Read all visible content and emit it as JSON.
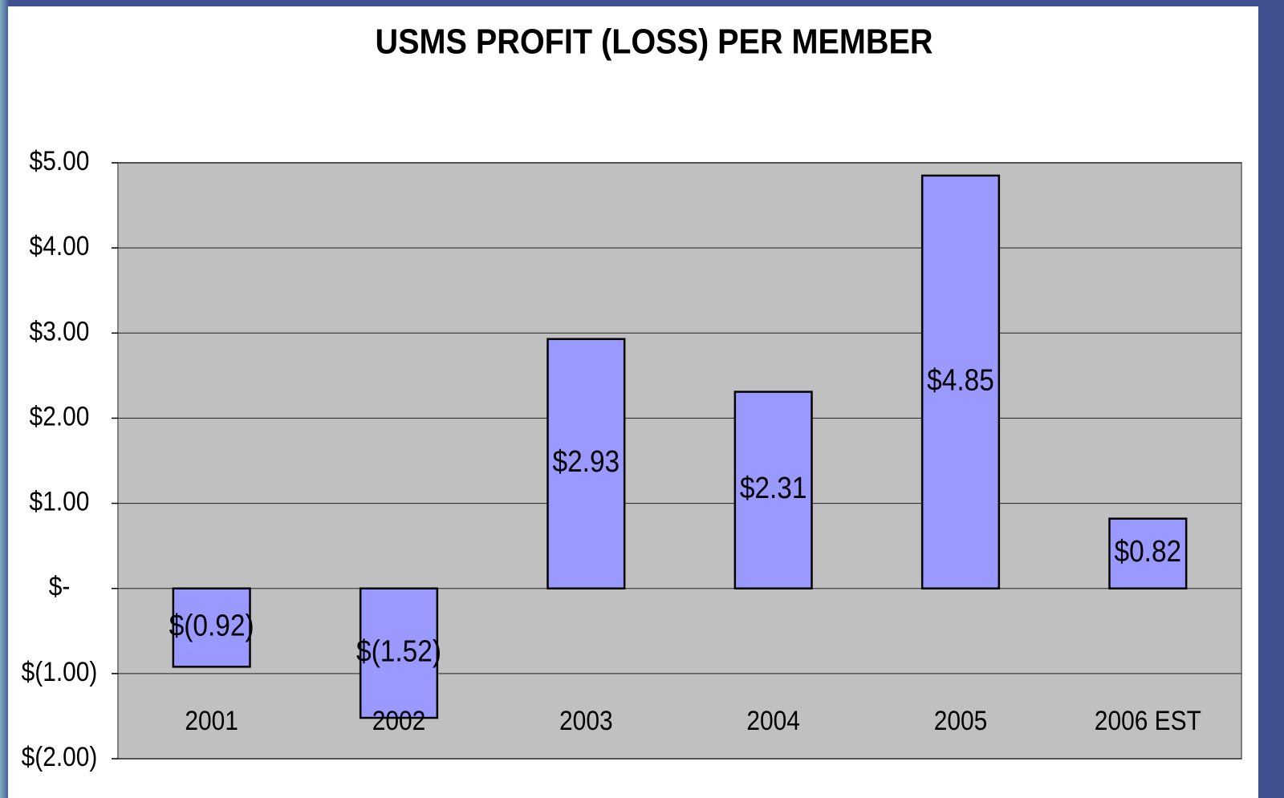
{
  "chart_data": {
    "type": "bar",
    "title": "USMS PROFIT (LOSS) PER MEMBER",
    "categories": [
      "2001",
      "2002",
      "2003",
      "2004",
      "2005",
      "2006 EST"
    ],
    "values": [
      -0.92,
      -1.52,
      2.93,
      2.31,
      4.85,
      0.82
    ],
    "value_labels": [
      "$(0.92)",
      "$(1.52)",
      "$2.93",
      "$2.31",
      "$4.85",
      "$0.82"
    ],
    "color": "#9999ff",
    "ylim": [
      -2,
      5
    ],
    "yticks": [
      {
        "value": -2,
        "label": "$(2.00)"
      },
      {
        "value": -1,
        "label": "$(1.00)"
      },
      {
        "value": 0,
        "label": "$-"
      },
      {
        "value": 1,
        "label": "$1.00"
      },
      {
        "value": 2,
        "label": "$2.00"
      },
      {
        "value": 3,
        "label": "$3.00"
      },
      {
        "value": 4,
        "label": "$4.00"
      },
      {
        "value": 5,
        "label": "$5.00"
      }
    ],
    "grid": true
  }
}
